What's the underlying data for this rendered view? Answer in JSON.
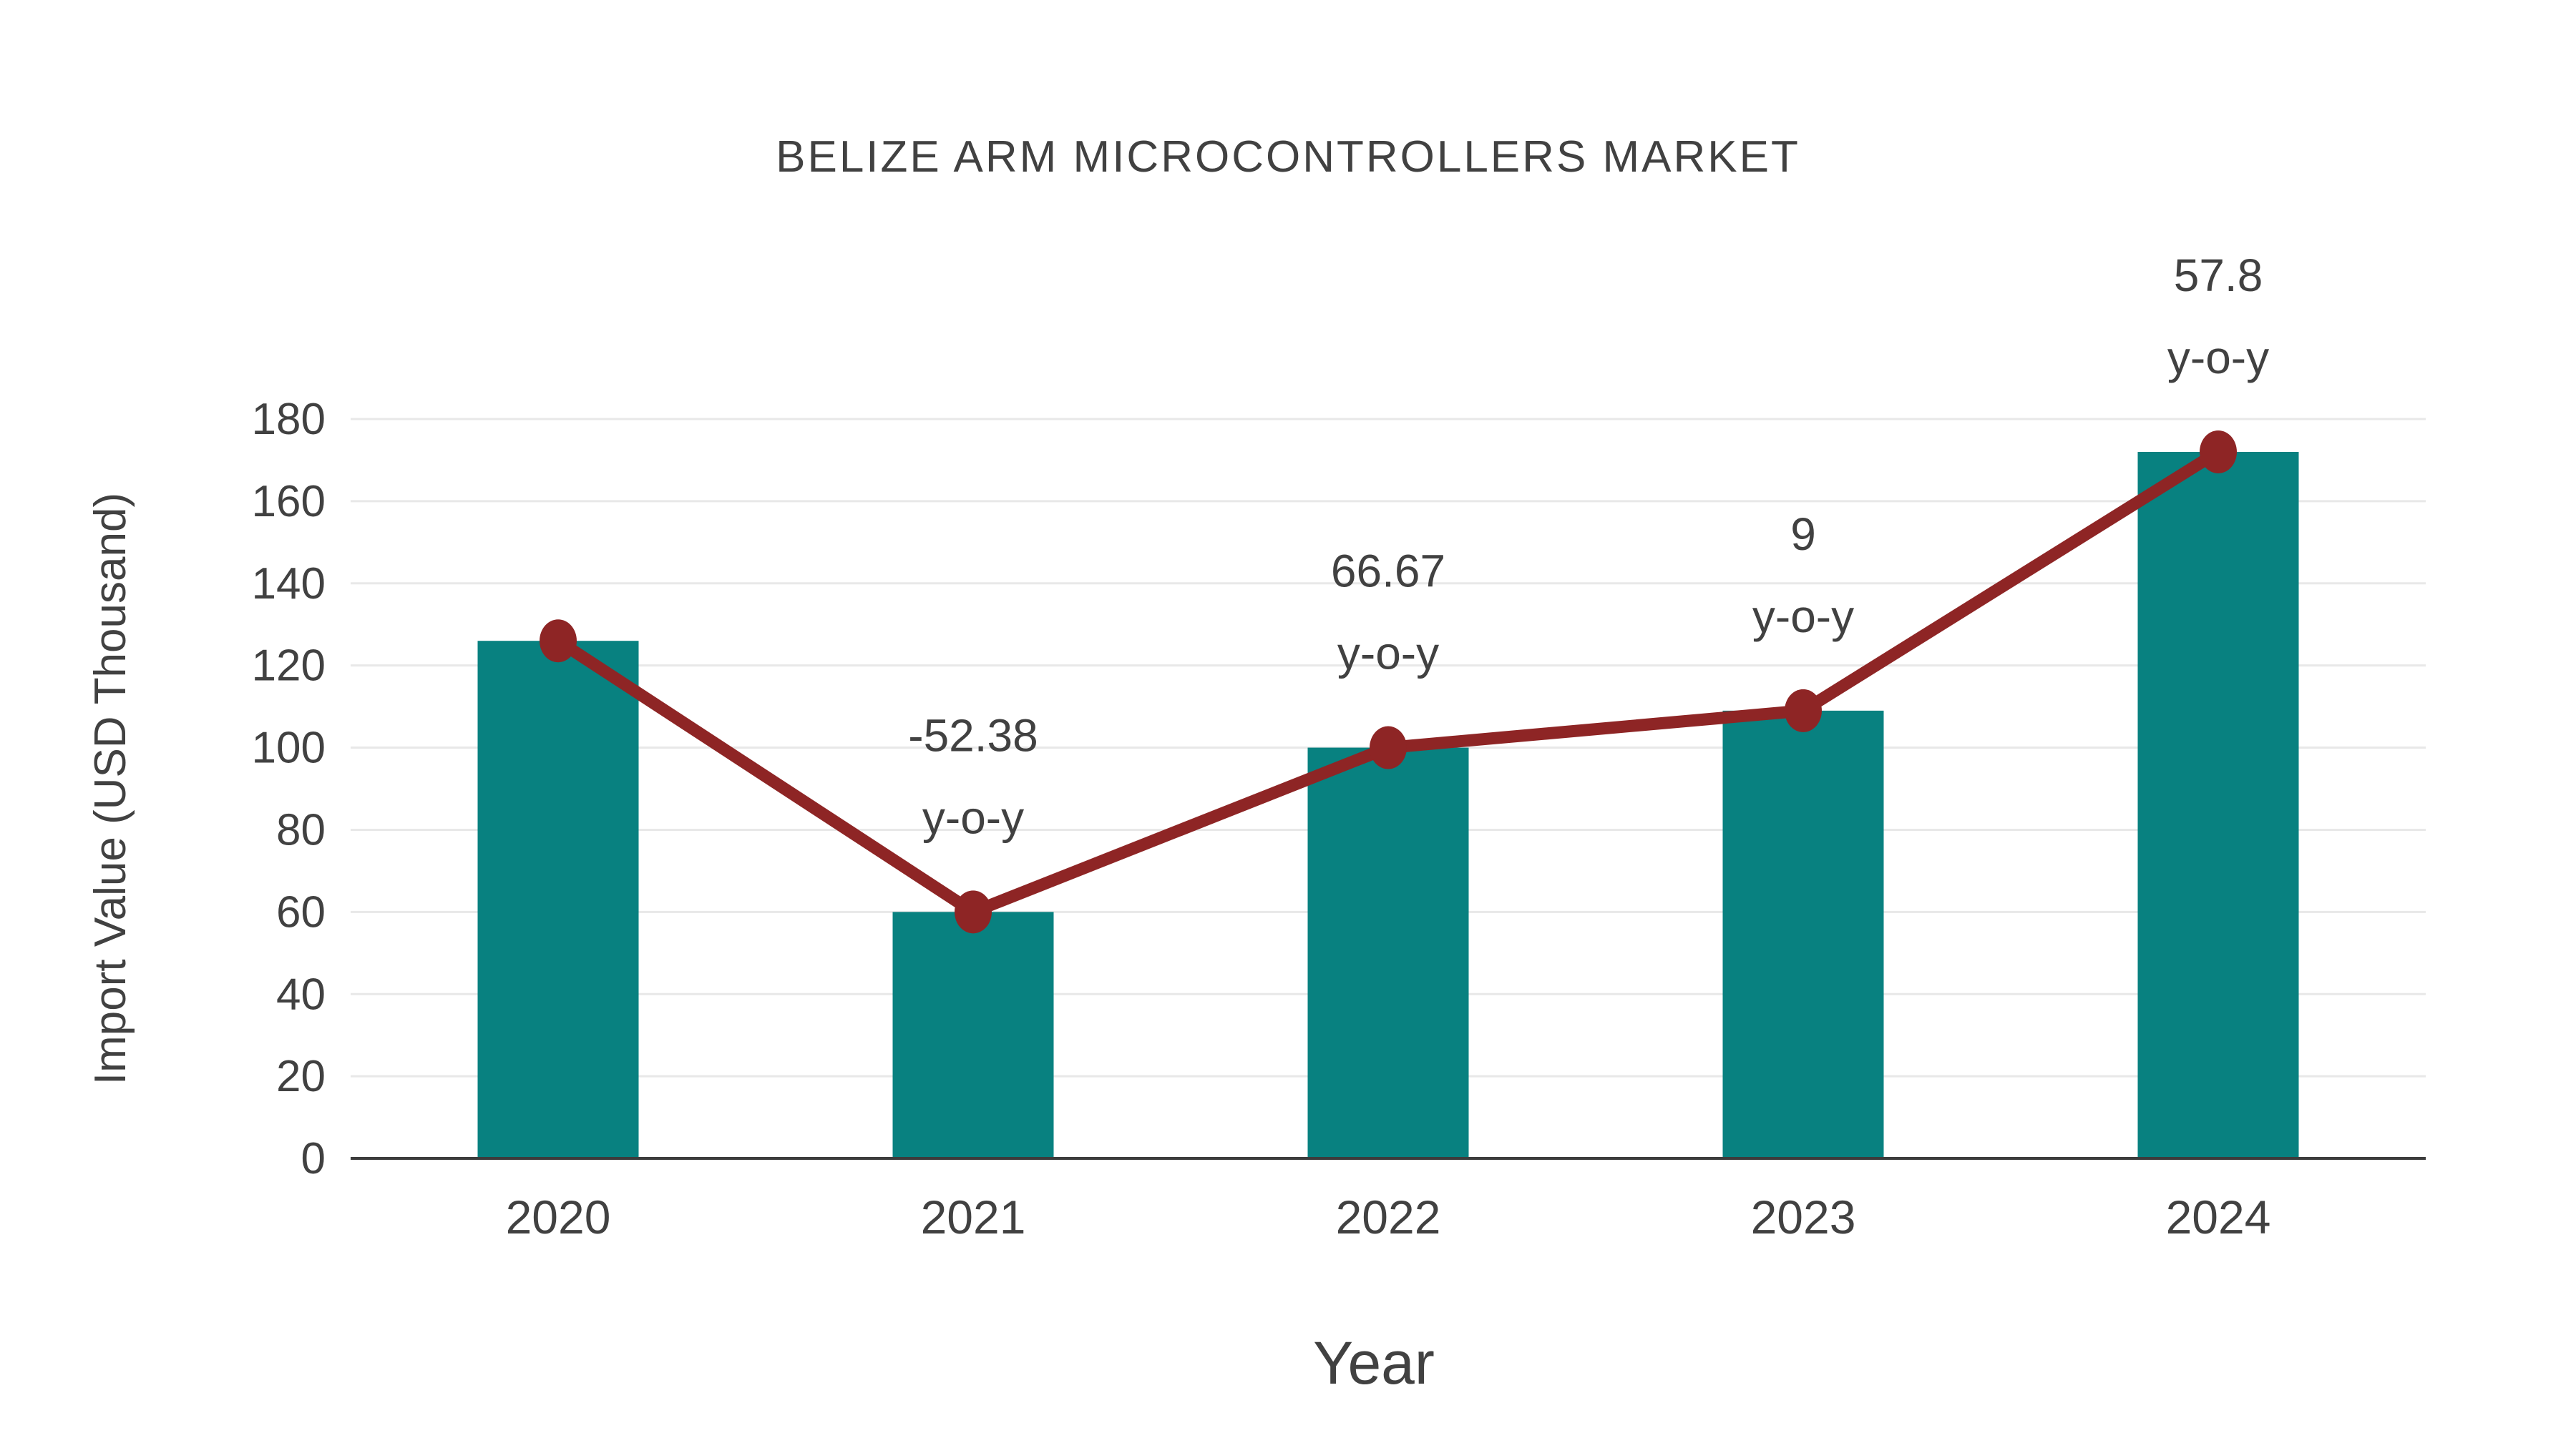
{
  "title": "BELIZE ARM MICROCONTROLLERS MARKET",
  "colors": {
    "bar": "#088180",
    "line": "#8e2525",
    "marker": "#8e2525",
    "text": "#414141",
    "grid": "#e8e8e8",
    "axis": "#3c3c3c",
    "background": "#ffffff"
  },
  "chart_data": {
    "type": "bar",
    "title": "BELIZE ARM MICROCONTROLLERS MARKET",
    "xlabel": "Year",
    "ylabel": "Import Value (USD Thousand)",
    "categories": [
      "2020",
      "2021",
      "2022",
      "2023",
      "2024"
    ],
    "series": [
      {
        "name": "Import Value (bars)",
        "type": "bar",
        "values": [
          126,
          60,
          100,
          109,
          172
        ]
      },
      {
        "name": "Import Value (trend line)",
        "type": "line",
        "values": [
          126,
          60,
          100,
          109,
          172
        ]
      }
    ],
    "annotations": [
      {
        "category": "2021",
        "line1": "-52.38",
        "line2": "y-o-y"
      },
      {
        "category": "2022",
        "line1": "66.67",
        "line2": "y-o-y"
      },
      {
        "category": "2023",
        "line1": "9",
        "line2": "y-o-y"
      },
      {
        "category": "2024",
        "line1": "57.8",
        "line2": "y-o-y"
      }
    ],
    "ylim": [
      0,
      180
    ],
    "ytick_step": 20,
    "yticks": [
      0,
      20,
      40,
      60,
      80,
      100,
      120,
      140,
      160,
      180
    ],
    "grid": true,
    "legend_position": "none"
  }
}
